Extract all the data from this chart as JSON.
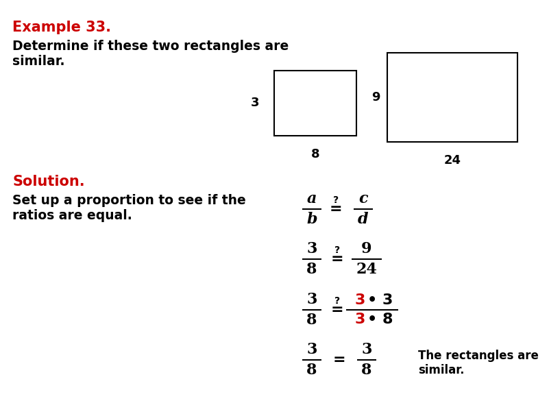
{
  "bg_color": "#FFFFFF",
  "title_text": "Example 33.",
  "title_color": "#CC0000",
  "problem_text": "Determine if these two rectangles are\nsimilar.",
  "solution_label": "Solution.",
  "solution_label_color": "#CC0000",
  "solution_text": "Set up a proportion to see if the\nratios are equal.",
  "conclusion_text": "The rectangles are\nsimilar.",
  "red_color": "#CC0000",
  "black_color": "#000000",
  "fig_w": 8.01,
  "fig_h": 6.01,
  "dpi": 100
}
